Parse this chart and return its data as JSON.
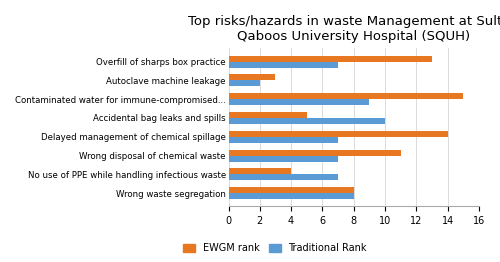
{
  "title": "Top risks/hazards in waste Management at Sultan\nQaboos University Hospital (SQUH)",
  "categories": [
    "Wrong waste segregation",
    "No use of PPE while handling infectious waste",
    "Wrong disposal of chemical waste",
    "Delayed management of chemical spillage",
    "Accidental bag leaks and spills",
    "Contaminated water for immune-compromised...",
    "Autoclave machine leakage",
    "Overfill of sharps box practice"
  ],
  "ewgm_rank": [
    8,
    4,
    11,
    14,
    5,
    15,
    3,
    13
  ],
  "traditional_rank": [
    8,
    7,
    7,
    7,
    10,
    9,
    2,
    7
  ],
  "ewgm_color": "#E87722",
  "traditional_color": "#5B9BD5",
  "xlim": [
    0,
    16
  ],
  "xticks": [
    0,
    2,
    4,
    6,
    8,
    10,
    12,
    14,
    16
  ],
  "bar_height": 0.32,
  "title_fontsize": 9.5,
  "legend_labels": [
    "EWGM rank",
    "Traditional Rank"
  ],
  "background_color": "#ffffff"
}
